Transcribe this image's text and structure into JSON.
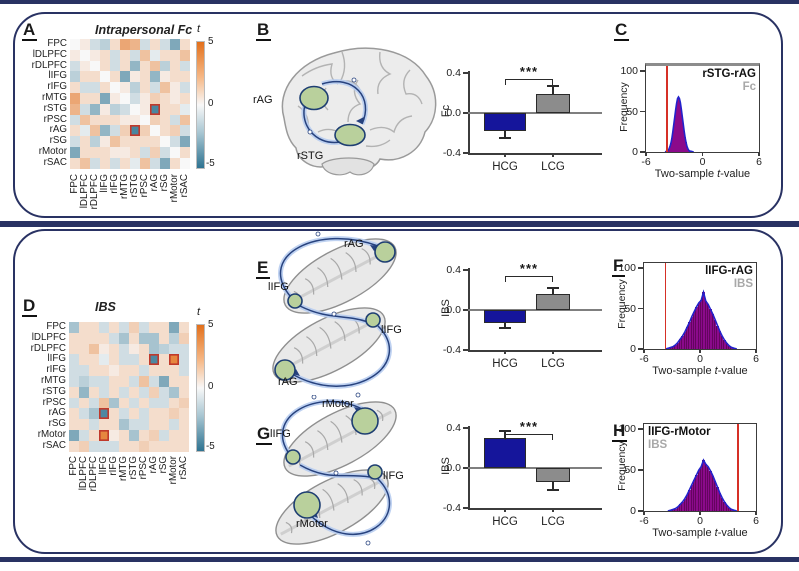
{
  "regions": [
    "FPC",
    "lDLPFC",
    "rDLPFC",
    "lIFG",
    "rIFG",
    "rMTG",
    "rSTG",
    "rPSC",
    "rAG",
    "rSG",
    "rMotor",
    "rSAC"
  ],
  "colorbar": {
    "label": "t",
    "ticks": [
      "5",
      "0",
      "-5"
    ]
  },
  "panelA": {
    "letter": "A",
    "title": "Intrapersonal Fc"
  },
  "panelB": {
    "letter": "B",
    "brain_labels": [
      "rAG",
      "rSTG"
    ]
  },
  "panelC": {
    "letter": "C"
  },
  "panelD": {
    "letter": "D",
    "title": "IBS"
  },
  "panelE": {
    "letter": "E",
    "brain_labels": [
      "rAG",
      "lIFG",
      "lIFG",
      "rAG"
    ]
  },
  "panelF": {
    "letter": "F"
  },
  "panelG": {
    "letter": "G",
    "brain_labels": [
      "rMotor",
      "lIFG",
      "lIFG",
      "rMotor"
    ]
  },
  "panelH": {
    "letter": "H"
  },
  "chart_data": [
    {
      "id": "A",
      "type": "heatmap",
      "title": "Intrapersonal Fc",
      "colorbar_label": "t",
      "colorbar_range": [
        -5,
        5
      ],
      "labels": [
        "FPC",
        "lDLPFC",
        "rDLPFC",
        "lIFG",
        "rIFG",
        "rMTG",
        "rSTG",
        "rPSC",
        "rAG",
        "rSG",
        "rMotor",
        "rSAC"
      ],
      "highlights": [
        [
          6,
          8
        ],
        [
          8,
          6
        ]
      ],
      "matrix": [
        [
          0,
          0.5,
          -1,
          -1.5,
          1,
          3,
          2.5,
          -1,
          1,
          -1,
          -3,
          1
        ],
        [
          0.5,
          0,
          0.5,
          1,
          -1,
          1,
          -1,
          2,
          -0.5,
          1,
          1,
          2
        ],
        [
          -1,
          0.5,
          0,
          1,
          -1,
          1,
          -2.5,
          1,
          2,
          -1.5,
          1,
          -1
        ],
        [
          -1.5,
          1,
          1,
          0,
          1,
          -3,
          0.5,
          1,
          -2.5,
          0.5,
          1,
          1
        ],
        [
          1,
          -1,
          -1,
          1,
          0,
          0.5,
          -1.5,
          1,
          -1,
          2,
          0.5,
          -1
        ],
        [
          3,
          1,
          1,
          -3,
          0.5,
          0,
          -1,
          0.5,
          1.5,
          1,
          0.5,
          1
        ],
        [
          2.5,
          -1,
          -2.5,
          0.5,
          -1.5,
          -1,
          0,
          0.5,
          -4.3,
          1,
          1,
          -0.5
        ],
        [
          -1,
          2,
          1,
          1,
          1,
          0.5,
          0.5,
          0,
          1.5,
          1,
          -1,
          2
        ],
        [
          1,
          -0.5,
          2,
          -2.5,
          -1,
          1.5,
          -4.3,
          1.5,
          0,
          1,
          1.5,
          -1
        ],
        [
          -1,
          1,
          -1.5,
          0.5,
          2,
          1,
          1,
          1,
          1,
          0,
          -1,
          -3
        ],
        [
          -3,
          1,
          1,
          1,
          0.5,
          0.5,
          1,
          -1,
          1.5,
          -1,
          0,
          1
        ],
        [
          1,
          2,
          -1,
          1,
          -1,
          1,
          -0.5,
          2,
          -1,
          -3,
          1,
          0
        ]
      ]
    },
    {
      "id": "D",
      "type": "heatmap",
      "title": "IBS",
      "colorbar_label": "t",
      "colorbar_range": [
        -5,
        5
      ],
      "labels": [
        "FPC",
        "lDLPFC",
        "rDLPFC",
        "lIFG",
        "rIFG",
        "rMTG",
        "rSTG",
        "rPSC",
        "rAG",
        "rSG",
        "rMotor",
        "rSAC"
      ],
      "highlights": [
        [
          3,
          8
        ],
        [
          3,
          10
        ],
        [
          8,
          3
        ],
        [
          10,
          3
        ]
      ],
      "matrix": [
        [
          -2,
          1,
          1,
          -1,
          1,
          -1,
          1.5,
          -1,
          1,
          1,
          -3,
          1
        ],
        [
          1,
          1,
          1,
          1,
          -1,
          -2,
          1,
          -2,
          -2,
          1,
          -1.5,
          1.5
        ],
        [
          1,
          1,
          2,
          0.5,
          1,
          -1,
          0.5,
          1,
          -2,
          -1.5,
          -1,
          -1
        ],
        [
          -1,
          1,
          1,
          -0.5,
          1,
          -1,
          -1,
          1,
          -4.2,
          1,
          4.2,
          -1
        ],
        [
          -1,
          -1,
          1,
          1,
          0.5,
          1,
          1,
          -1,
          1,
          1,
          1,
          -1
        ],
        [
          -1,
          -1.5,
          -1,
          -1,
          1,
          1,
          -1,
          2,
          -1,
          -3,
          1,
          1
        ],
        [
          1,
          -2.5,
          1,
          -1,
          1,
          -1,
          1,
          -1,
          1.5,
          -1,
          -2,
          1
        ],
        [
          -1,
          1,
          -1,
          2,
          -2,
          1,
          -1,
          1,
          -1,
          -1,
          1,
          1.5
        ],
        [
          1,
          -1,
          -2,
          -4.2,
          1,
          -1,
          1,
          -1,
          1,
          1,
          1.5,
          1
        ],
        [
          1,
          1,
          -1,
          1,
          1,
          -2,
          -1,
          -1,
          1,
          1,
          -1,
          1
        ],
        [
          -3,
          -1,
          1,
          4.2,
          0.5,
          1,
          -2,
          1,
          1.5,
          -1,
          1,
          1
        ],
        [
          1,
          1.5,
          -1,
          -1,
          -1,
          1,
          1,
          1.5,
          1,
          1,
          1,
          1
        ]
      ]
    },
    {
      "id": "B",
      "type": "bar",
      "ylabel": "Fc",
      "categories": [
        "HCG",
        "LCG"
      ],
      "values": [
        -0.18,
        0.19
      ],
      "errors": [
        0.07,
        0.08
      ],
      "yticks": [
        "0.4",
        "0.0",
        "-0.4"
      ],
      "ylim": [
        -0.4,
        0.4
      ],
      "sig": "***",
      "colors": [
        "#15159b",
        "#8c8c8c"
      ]
    },
    {
      "id": "C",
      "type": "histogram",
      "title": "rSTG-rAG",
      "subtitle": "Fc",
      "title_pos": "right",
      "xlabel_prefix": "Two-sample ",
      "xlabel_italic": "t",
      "xlabel_suffix": "-value",
      "ylabel": "Frequency",
      "xlim": [
        -6,
        6
      ],
      "ylim": [
        0,
        100
      ],
      "xticks": [
        "-6",
        "0",
        "6"
      ],
      "yticks": [
        "0",
        "50",
        "100"
      ],
      "red_line": -3.9,
      "bin_start": -3.7,
      "bin_width": 0.1,
      "frequencies": [
        2,
        4,
        7,
        11,
        17,
        25,
        34,
        43,
        52,
        60,
        66,
        68,
        66,
        61,
        53,
        44,
        35,
        26,
        18,
        12,
        7,
        4,
        2,
        1,
        1
      ]
    },
    {
      "id": "E",
      "type": "bar",
      "ylabel": "IBS",
      "categories": [
        "HCG",
        "LCG"
      ],
      "values": [
        -0.13,
        0.16
      ],
      "errors": [
        0.05,
        0.06
      ],
      "yticks": [
        "0.4",
        "0.0",
        "-0.4"
      ],
      "ylim": [
        -0.4,
        0.4
      ],
      "sig": "***",
      "colors": [
        "#15159b",
        "#8c8c8c"
      ]
    },
    {
      "id": "F",
      "type": "histogram",
      "title": "lIFG-rAG",
      "subtitle": "IBS",
      "title_pos": "right",
      "xlabel_prefix": "Two-sample ",
      "xlabel_italic": "t",
      "xlabel_suffix": "-value",
      "ylabel": "Frequency",
      "xlim": [
        -6,
        6
      ],
      "ylim": [
        0,
        100
      ],
      "xticks": [
        "-6",
        "0",
        "6"
      ],
      "yticks": [
        "0",
        "50",
        "100"
      ],
      "red_line": -3.8,
      "bin_start": -3.5,
      "bin_width": 0.25,
      "frequencies": [
        1,
        2,
        3,
        5,
        8,
        12,
        16,
        21,
        27,
        33,
        40,
        46,
        52,
        57,
        60,
        70,
        59,
        55,
        49,
        43,
        36,
        29,
        22,
        16,
        11,
        7,
        4,
        2,
        1
      ]
    },
    {
      "id": "G",
      "type": "bar",
      "ylabel": "IBS",
      "categories": [
        "HCG",
        "LCG"
      ],
      "values": [
        0.3,
        -0.14
      ],
      "errors": [
        0.07,
        0.08
      ],
      "yticks": [
        "0.4",
        "0.0",
        "-0.4"
      ],
      "ylim": [
        -0.4,
        0.4
      ],
      "sig": "***",
      "colors": [
        "#15159b",
        "#8c8c8c"
      ]
    },
    {
      "id": "H",
      "type": "histogram",
      "title": "lIFG-rMotor",
      "subtitle": "IBS",
      "title_pos": "left",
      "xlabel_prefix": "Two-sample ",
      "xlabel_italic": "t",
      "xlabel_suffix": "-value",
      "ylabel": "Frequency",
      "xlim": [
        -6,
        6
      ],
      "ylim": [
        0,
        100
      ],
      "xticks": [
        "-6",
        "0",
        "6"
      ],
      "yticks": [
        "0",
        "50",
        "100"
      ],
      "red_line": 4.0,
      "bin_start": -3.25,
      "bin_width": 0.25,
      "frequencies": [
        1,
        2,
        3,
        5,
        8,
        11,
        15,
        20,
        26,
        32,
        38,
        44,
        50,
        54,
        62,
        57,
        54,
        49,
        43,
        36,
        29,
        22,
        16,
        11,
        7,
        4,
        2,
        1
      ]
    }
  ]
}
